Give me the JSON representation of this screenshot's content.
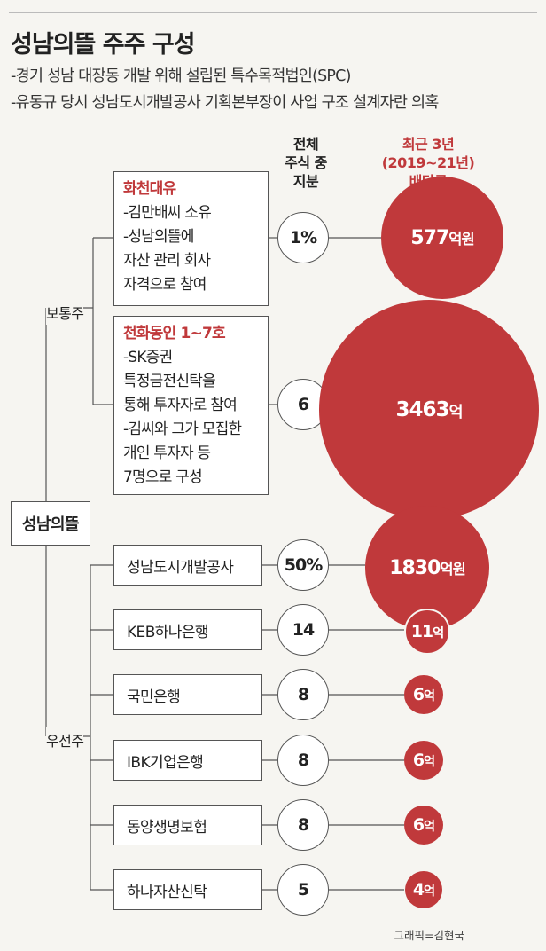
{
  "title": "성남의뜰 주주 구성",
  "subtitle_lines": [
    "-경기 성남 대장동 개발 위해 설립된 특수목적법인(SPC)",
    "-유동규 당시 성남도시개발공사 기획본부장이 사업 구조 설계자란 의혹"
  ],
  "headers": {
    "share": [
      "전체",
      "주식 중",
      "지분"
    ],
    "dividend": [
      "최근 3년",
      "(2019~21년)",
      "배당금"
    ]
  },
  "root": "성남의뜰",
  "groups": {
    "common": "보통주",
    "preferred": "우선주"
  },
  "common_holders": [
    {
      "name": "화천대유",
      "details": [
        "-김만배씨 소유",
        "-성남의뜰에",
        "자산 관리 회사",
        "자격으로 참여"
      ],
      "share": "1%",
      "dividend_main": "577",
      "dividend_unit": "억원"
    },
    {
      "name": "천화동인 1~7호",
      "details": [
        "-SK증권",
        "특정금전신탁을",
        "통해 투자자로 참여",
        "-김씨와 그가 모집한",
        "개인 투자자 등",
        "7명으로 구성"
      ],
      "share": "6",
      "dividend_main": "3463",
      "dividend_unit": "억"
    }
  ],
  "preferred_holders": [
    {
      "name": "성남도시개발공사",
      "share": "50%",
      "dividend_main": "1830",
      "dividend_unit": "억원"
    },
    {
      "name": "KEB하나은행",
      "share": "14",
      "dividend_main": "11",
      "dividend_unit": "억"
    },
    {
      "name": "국민은행",
      "share": "8",
      "dividend_main": "6",
      "dividend_unit": "억"
    },
    {
      "name": "IBK기업은행",
      "share": "8",
      "dividend_main": "6",
      "dividend_unit": "억"
    },
    {
      "name": "동양생명보험",
      "share": "8",
      "dividend_main": "6",
      "dividend_unit": "억"
    },
    {
      "name": "하나자산신탁",
      "share": "5",
      "dividend_main": "4",
      "dividend_unit": "억"
    }
  ],
  "credit": "그래픽=김현국",
  "colors": {
    "accent": "#c0393b",
    "background": "#f6f5f1",
    "line": "#555555"
  }
}
